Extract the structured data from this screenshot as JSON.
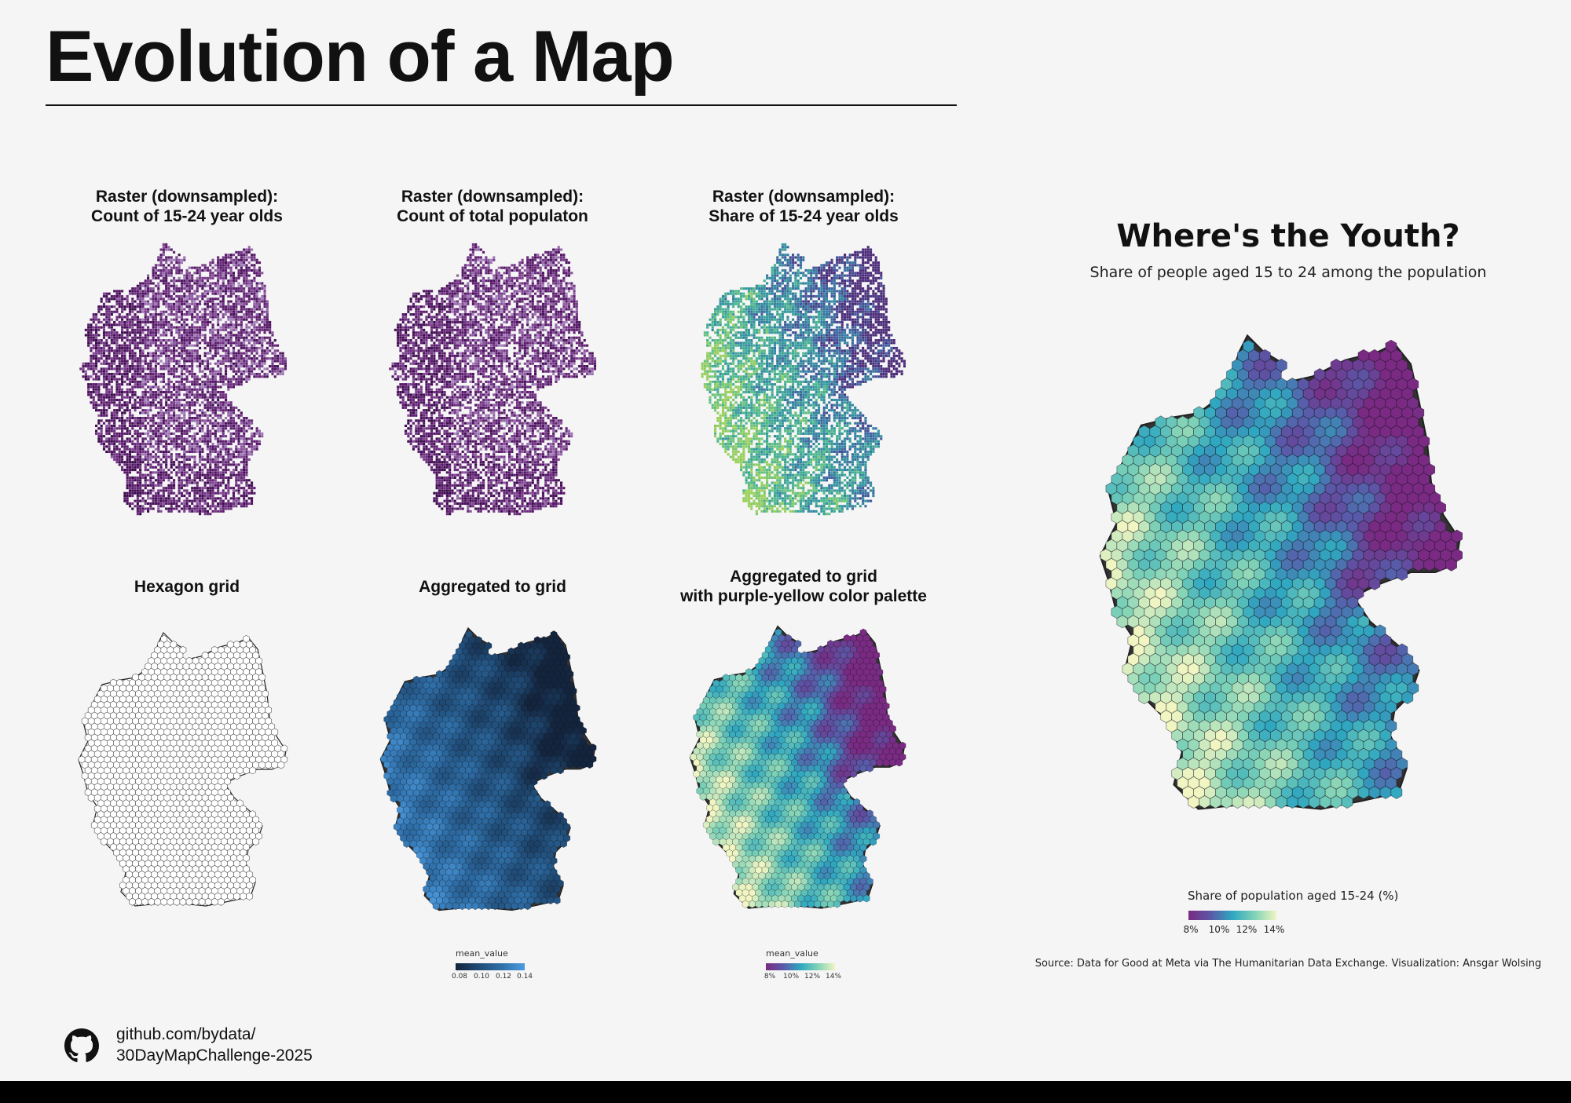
{
  "title": "Evolution of a Map",
  "panels": [
    {
      "title": "Raster (downsampled):\nCount of 15-24 year olds",
      "style": "raster-purple"
    },
    {
      "title": "Raster (downsampled):\nCount of total populaton",
      "style": "raster-purple"
    },
    {
      "title": "Raster (downsampled):\nShare of 15-24 year olds",
      "style": "raster-viridis"
    },
    {
      "title": "Hexagon grid",
      "style": "hex-outline"
    },
    {
      "title": "Aggregated to grid",
      "style": "hex-blue"
    },
    {
      "title": "Aggregated to grid\nwith purple-yellow color palette",
      "style": "hex-purple-yellow"
    }
  ],
  "legend_blue": {
    "title": "mean_value",
    "ticks": [
      "0.08",
      "0.10",
      "0.12",
      "0.14"
    ],
    "colors": [
      "#13243d",
      "#1f4a74",
      "#2f6fa8",
      "#4c9be0"
    ]
  },
  "legend_py_small": {
    "title": "mean_value",
    "ticks": [
      "8%",
      "10%",
      "12%",
      "14%"
    ],
    "colors": [
      "#7a2a82",
      "#5a58a8",
      "#2fa7c0",
      "#7fd2b6",
      "#f0f5c2"
    ]
  },
  "youth": {
    "title": "Where's the Youth?",
    "subtitle": "Share of people aged 15 to 24 among the population",
    "legend_title": "Share of population aged 15-24 (%)",
    "ticks": [
      "8%",
      "10%",
      "12%",
      "14%"
    ],
    "colors": [
      "#7a2a82",
      "#5a58a8",
      "#2fa7c0",
      "#7fd2b6",
      "#f0f5c2"
    ],
    "source": "Source: Data for Good at Meta via The Humanitarian Data Exchange. Visualization: Ansgar Wolsing"
  },
  "footer": {
    "github": "github.com/bydata/\n30DayMapChallenge-2025"
  }
}
